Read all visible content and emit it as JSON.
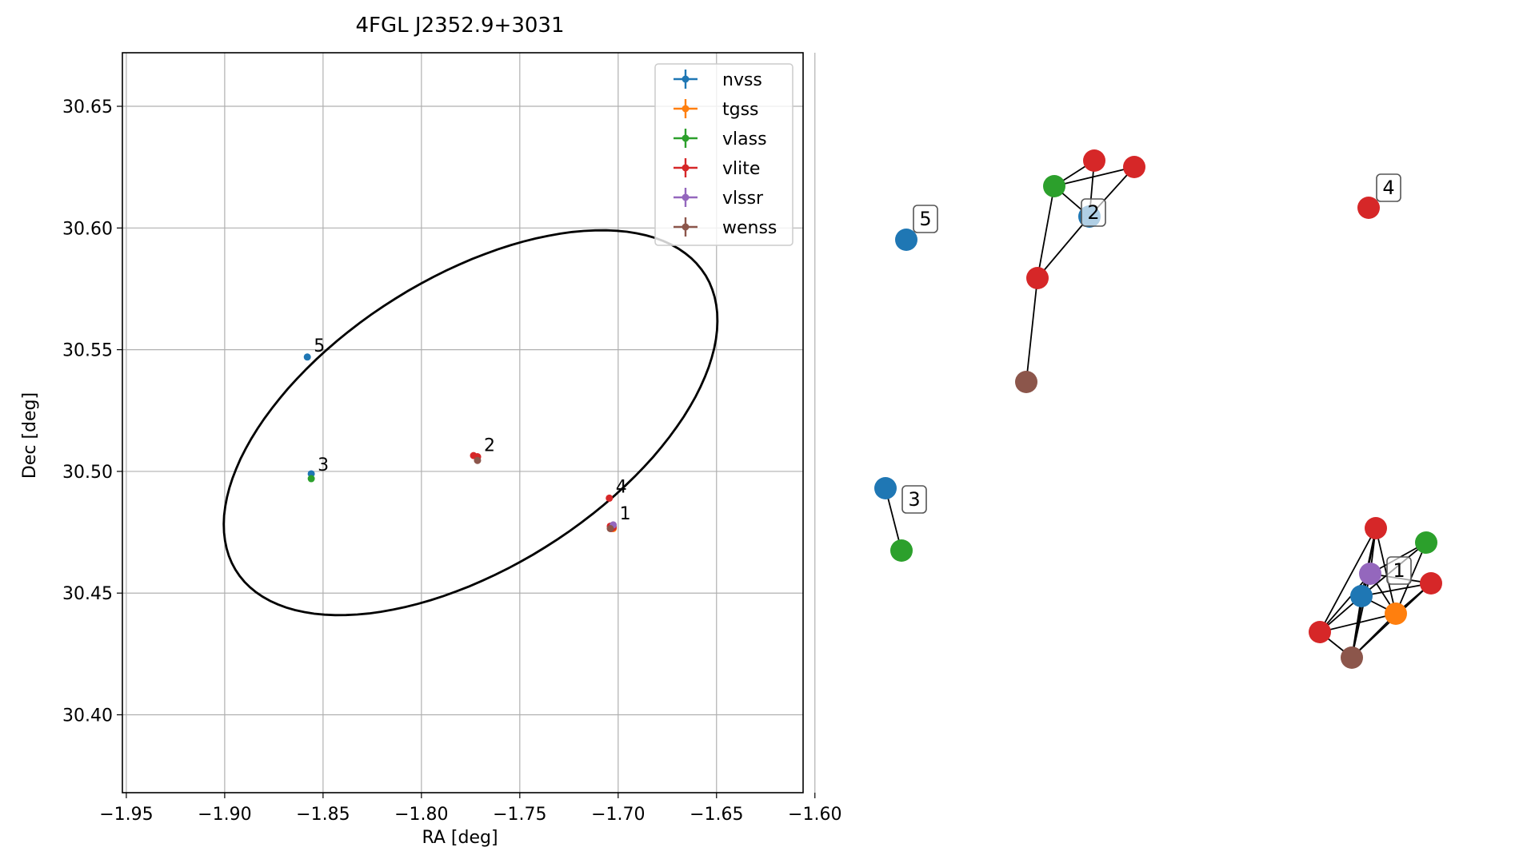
{
  "chart_data": [
    {
      "type": "scatter",
      "title": "4FGL J2352.9+3031",
      "xlabel": "RA [deg]",
      "ylabel": "Dec [deg]",
      "xlim": [
        -1.952,
        -1.606
      ],
      "ylim": [
        30.368,
        30.672
      ],
      "xticks": [
        -1.95,
        -1.9,
        -1.85,
        -1.8,
        -1.75,
        -1.7,
        -1.65,
        -1.6
      ],
      "xtick_labels": [
        "−1.95",
        "−1.90",
        "−1.85",
        "−1.80",
        "−1.75",
        "−1.70",
        "−1.65",
        "−1.60"
      ],
      "yticks": [
        30.4,
        30.45,
        30.5,
        30.55,
        30.6,
        30.65
      ],
      "ytick_labels": [
        "30.40",
        "30.45",
        "30.50",
        "30.55",
        "30.60",
        "30.65"
      ],
      "grid": true,
      "legend_position": "top-right",
      "series": [
        {
          "name": "nvss",
          "color": "#1f77b4",
          "points": [
            [
              -1.858,
              30.547
            ],
            [
              -1.856,
              30.499
            ],
            [
              -1.703,
              30.477
            ]
          ]
        },
        {
          "name": "tgss",
          "color": "#ff7f0e",
          "points": [
            [
              -1.7025,
              30.4765
            ]
          ]
        },
        {
          "name": "vlass",
          "color": "#2ca02c",
          "points": [
            [
              -1.856,
              30.497
            ],
            [
              -1.7025,
              30.4775
            ]
          ]
        },
        {
          "name": "vlite",
          "color": "#d62728",
          "points": [
            [
              -1.7735,
              30.5065
            ],
            [
              -1.7715,
              30.506
            ],
            [
              -1.7715,
              30.506
            ],
            [
              -1.7045,
              30.489
            ],
            [
              -1.704,
              30.4775
            ],
            [
              -1.7035,
              30.4765
            ],
            [
              -1.7025,
              30.477
            ]
          ]
        },
        {
          "name": "vlssr",
          "color": "#9467bd",
          "points": [
            [
              -1.7025,
              30.478
            ]
          ]
        },
        {
          "name": "wenss",
          "color": "#8c564b",
          "points": [
            [
              -1.7715,
              30.5045
            ],
            [
              -1.704,
              30.4765
            ]
          ]
        }
      ],
      "ellipse": {
        "center": [
          -1.775,
          30.52
        ],
        "semi_axis_a": 0.1345,
        "semi_axis_b": 0.0625,
        "angle_deg": 24
      },
      "annotations": [
        {
          "text": "1",
          "x": -1.7025,
          "y": 30.478
        },
        {
          "text": "2",
          "x": -1.7715,
          "y": 30.506
        },
        {
          "text": "3",
          "x": -1.856,
          "y": 30.498
        },
        {
          "text": "4",
          "x": -1.7045,
          "y": 30.489
        },
        {
          "text": "5",
          "x": -1.858,
          "y": 30.547
        }
      ]
    },
    {
      "type": "network",
      "nodes": [
        {
          "id": "n1",
          "color": "#1f77b4"
        },
        {
          "id": "n2",
          "color": "#ff7f0e"
        },
        {
          "id": "n3",
          "color": "#9467bd"
        },
        {
          "id": "n4",
          "color": "#2ca02c"
        },
        {
          "id": "n5",
          "color": "#d62728"
        },
        {
          "id": "n6",
          "color": "#d62728"
        },
        {
          "id": "n7",
          "color": "#d62728"
        },
        {
          "id": "n8",
          "color": "#8c564b"
        },
        {
          "id": "n9",
          "color": "#2ca02c"
        },
        {
          "id": "n10",
          "color": "#d62728"
        },
        {
          "id": "n11",
          "color": "#d62728"
        },
        {
          "id": "n12",
          "color": "#1f77b4"
        },
        {
          "id": "n13",
          "color": "#d62728"
        },
        {
          "id": "n14",
          "color": "#8c564b"
        },
        {
          "id": "n15",
          "color": "#1f77b4"
        },
        {
          "id": "n16",
          "color": "#2ca02c"
        },
        {
          "id": "n17",
          "color": "#1f77b4"
        },
        {
          "id": "n18",
          "color": "#d62728"
        }
      ],
      "edges": [
        [
          "n1",
          "n2"
        ],
        [
          "n1",
          "n3"
        ],
        [
          "n1",
          "n5"
        ],
        [
          "n1",
          "n8"
        ],
        [
          "n1",
          "n6"
        ],
        [
          "n1",
          "n7"
        ],
        [
          "n1",
          "n4"
        ],
        [
          "n2",
          "n3"
        ],
        [
          "n2",
          "n4"
        ],
        [
          "n2",
          "n5"
        ],
        [
          "n2",
          "n6"
        ],
        [
          "n2",
          "n7"
        ],
        [
          "n2",
          "n8"
        ],
        [
          "n3",
          "n4"
        ],
        [
          "n3",
          "n5"
        ],
        [
          "n3",
          "n6"
        ],
        [
          "n3",
          "n7"
        ],
        [
          "n3",
          "n8"
        ],
        [
          "n5",
          "n8"
        ],
        [
          "n6",
          "n8"
        ],
        [
          "n7",
          "n8"
        ],
        [
          "n5",
          "n6"
        ],
        [
          "n9",
          "n10"
        ],
        [
          "n9",
          "n12"
        ],
        [
          "n10",
          "n12"
        ],
        [
          "n11",
          "n12"
        ],
        [
          "n9",
          "n11"
        ],
        [
          "n12",
          "n13"
        ],
        [
          "n13",
          "n14"
        ],
        [
          "n9",
          "n13"
        ],
        [
          "n15",
          "n16"
        ]
      ],
      "node_labels": [
        {
          "text": "1",
          "node": "n3"
        },
        {
          "text": "2",
          "node": "n12"
        },
        {
          "text": "3",
          "node": "n15"
        },
        {
          "text": "4",
          "node": "n18"
        },
        {
          "text": "5",
          "node": "n17"
        }
      ]
    }
  ]
}
